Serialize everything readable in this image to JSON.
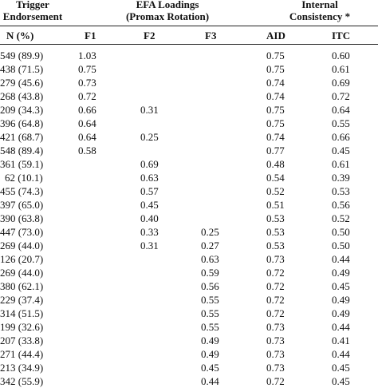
{
  "header": {
    "trigger_line1": "Trigger",
    "trigger_line2": "Endorsement",
    "efa_line1": "EFA Loadings",
    "efa_line2": "(Promax Rotation)",
    "ic_line1": "Internal",
    "ic_line2": "Consistency *"
  },
  "columns": {
    "n": "N (%)",
    "f1": "F1",
    "f2": "F2",
    "f3": "F3",
    "aid": "AID",
    "itc": "ITC"
  },
  "rows": [
    {
      "n": "549 (89.9)",
      "f1": "1.03",
      "f2": "",
      "f3": "",
      "aid": "0.75",
      "itc": "0.60"
    },
    {
      "n": "438 (71.5)",
      "f1": "0.75",
      "f2": "",
      "f3": "",
      "aid": "0.75",
      "itc": "0.61"
    },
    {
      "n": "279 (45.6)",
      "f1": "0.73",
      "f2": "",
      "f3": "",
      "aid": "0.74",
      "itc": "0.69"
    },
    {
      "n": "268 (43.8)",
      "f1": "0.72",
      "f2": "",
      "f3": "",
      "aid": "0.74",
      "itc": "0.72"
    },
    {
      "n": "209 (34.3)",
      "f1": "0.66",
      "f2": "0.31",
      "f3": "",
      "aid": "0.75",
      "itc": "0.64"
    },
    {
      "n": "396 (64.8)",
      "f1": "0.64",
      "f2": "",
      "f3": "",
      "aid": "0.75",
      "itc": "0.55"
    },
    {
      "n": "421 (68.7)",
      "f1": "0.64",
      "f2": "0.25",
      "f3": "",
      "aid": "0.74",
      "itc": "0.66"
    },
    {
      "n": "548 (89.4)",
      "f1": "0.58",
      "f2": "",
      "f3": "",
      "aid": "0.77",
      "itc": "0.45"
    },
    {
      "n": "361 (59.1)",
      "f1": "",
      "f2": "0.69",
      "f3": "",
      "aid": "0.48",
      "itc": "0.61"
    },
    {
      "n": "62 (10.1)",
      "f1": "",
      "f2": "0.63",
      "f3": "",
      "aid": "0.54",
      "itc": "0.39"
    },
    {
      "n": "455 (74.3)",
      "f1": "",
      "f2": "0.57",
      "f3": "",
      "aid": "0.52",
      "itc": "0.53"
    },
    {
      "n": "397 (65.0)",
      "f1": "",
      "f2": "0.45",
      "f3": "",
      "aid": "0.51",
      "itc": "0.56"
    },
    {
      "n": "390 (63.8)",
      "f1": "",
      "f2": "0.40",
      "f3": "",
      "aid": "0.53",
      "itc": "0.52"
    },
    {
      "n": "447 (73.0)",
      "f1": "",
      "f2": "0.33",
      "f3": "0.25",
      "aid": "0.53",
      "itc": "0.50"
    },
    {
      "n": "269 (44.0)",
      "f1": "",
      "f2": "0.31",
      "f3": "0.27",
      "aid": "0.53",
      "itc": "0.50"
    },
    {
      "n": "126 (20.7)",
      "f1": "",
      "f2": "",
      "f3": "0.63",
      "aid": "0.73",
      "itc": "0.44"
    },
    {
      "n": "269 (44.0)",
      "f1": "",
      "f2": "",
      "f3": "0.59",
      "aid": "0.72",
      "itc": "0.49"
    },
    {
      "n": "380 (62.1)",
      "f1": "",
      "f2": "",
      "f3": "0.56",
      "aid": "0.72",
      "itc": "0.45"
    },
    {
      "n": "229 (37.4)",
      "f1": "",
      "f2": "",
      "f3": "0.55",
      "aid": "0.72",
      "itc": "0.49"
    },
    {
      "n": "314 (51.5)",
      "f1": "",
      "f2": "",
      "f3": "0.55",
      "aid": "0.72",
      "itc": "0.49"
    },
    {
      "n": "199 (32.6)",
      "f1": "",
      "f2": "",
      "f3": "0.55",
      "aid": "0.73",
      "itc": "0.44"
    },
    {
      "n": "207 (33.8)",
      "f1": "",
      "f2": "",
      "f3": "0.49",
      "aid": "0.73",
      "itc": "0.41"
    },
    {
      "n": "271 (44.4)",
      "f1": "",
      "f2": "",
      "f3": "0.49",
      "aid": "0.73",
      "itc": "0.44"
    },
    {
      "n": "213 (34.9)",
      "f1": "",
      "f2": "",
      "f3": "0.45",
      "aid": "0.73",
      "itc": "0.45"
    },
    {
      "n": "342 (55.9)",
      "f1": "",
      "f2": "",
      "f3": "0.44",
      "aid": "0.72",
      "itc": "0.45"
    }
  ]
}
